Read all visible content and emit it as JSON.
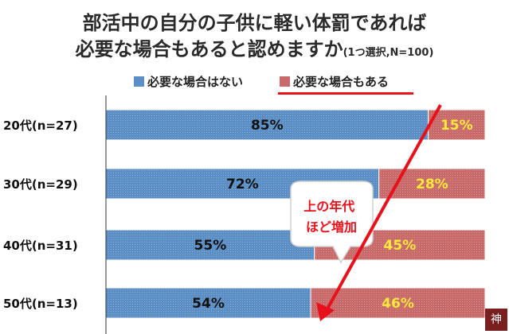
{
  "title": {
    "line1": "部活中の自分の子供に軽い体罰であれば",
    "line2_main": "必要な場合もあると認めますか",
    "line2_sub": "(1つ選択,N=100)"
  },
  "legend": [
    {
      "label": "必要な場合はない",
      "color": "#5b8ec4"
    },
    {
      "label": "必要な場合もある",
      "color": "#c96a6a"
    }
  ],
  "callout": {
    "line1": "上の年代",
    "line2": "ほど増加"
  },
  "seal_text": "神",
  "colors": {
    "series_a": "#5b8ec4",
    "series_b": "#c96a6a",
    "accent": "#e8101a",
    "label_b": "#ffe93a",
    "label_a": "#111111"
  },
  "chart_data": {
    "type": "bar",
    "orientation": "horizontal",
    "stacked": true,
    "categories": [
      "20代(n=27)",
      "30代(n=29)",
      "40代(n=31)",
      "50代(n=13)"
    ],
    "series": [
      {
        "name": "必要な場合はない",
        "values": [
          85,
          72,
          55,
          54
        ],
        "labels": [
          "85%",
          "72%",
          "55%",
          "54%"
        ]
      },
      {
        "name": "必要な場合もある",
        "values": [
          15,
          28,
          45,
          46
        ],
        "labels": [
          "15%",
          "28%",
          "45%",
          "46%"
        ]
      }
    ],
    "xlim": [
      0,
      100
    ],
    "legend_position": "top"
  }
}
